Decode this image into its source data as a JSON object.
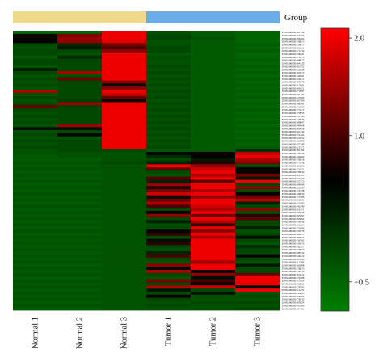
{
  "chart_data": {
    "type": "heatmap",
    "group_label": "Group",
    "groups": [
      {
        "name": "Normal",
        "columns": [
          "Normal 1",
          "Normal 2",
          "Normal 3"
        ],
        "color": "#efd98a"
      },
      {
        "name": "Tumor",
        "columns": [
          "Tumor 1",
          "Tumor 2",
          "Tumor 3"
        ],
        "color": "#6aace6"
      }
    ],
    "x_labels": [
      "Normal 1",
      "Normal 2",
      "Normal 3",
      "Tumor 1",
      "Tumor 2",
      "Tumor 3"
    ],
    "colorbar": {
      "ticks": [
        2.0,
        1.0,
        -0.5
      ],
      "tick_labels": [
        "2.0",
        "1.0",
        "−0.5"
      ],
      "range": [
        -0.8,
        2.1
      ],
      "colors": {
        "low": "#008000",
        "mid": "#000000",
        "high": "#ff0000"
      },
      "mid_value": 0.55
    },
    "row_labels": [
      "ENSG00000161739",
      "ENSG00000174595",
      "ENSG00000186304",
      "ENSG00000138613",
      "ENSG00000159077",
      "ENSG00000161011",
      "ENSG00000171234",
      "ENSG00000138401",
      "ENSG00000172915",
      "ENSG00000198877",
      "ENSG00000184330",
      "ENSG00000163752",
      "ENSG00000130528",
      "ENSG00000164713",
      "ENSG00000144591",
      "ENSG00000126217",
      "ENSG00000108278",
      "ENSG00000117602",
      "ENSG00000164251",
      "ENSG00000177697",
      "ENSG00000131127",
      "ENSG00000123595",
      "ENSG00000165709",
      "ENSG00000196381",
      "ENSG00000154099",
      "ENSG00000173217",
      "ENSG00000170955",
      "ENSG00000137486",
      "ENSG00000145826",
      "ENSG00000189047",
      "ENSG00000144908",
      "ENSG00000160956",
      "ENSG00000167434",
      "ENSG00000151204",
      "ENSG00000120314",
      "ENSG00000163788",
      "ENSG00000155749",
      "ENSG00000112715",
      "ENSG00000181104",
      "ENSG00000135926",
      "ENSG00000140464",
      "ENSG00000139618",
      "ENSG00000175538",
      "ENSG00000183696",
      "ENSG00000171621",
      "ENSG00000136630",
      "ENSG00000119523",
      "ENSG00000154229",
      "ENSG00000137273",
      "ENSG00000108406",
      "ENSG00000122335",
      "ENSG00000174738",
      "ENSG00000146830",
      "ENSG00000175183",
      "ENSG00000166851",
      "ENSG00000133393",
      "ENSG00000142549",
      "ENSG00000116171",
      "ENSG00000105568",
      "ENSG00000163497",
      "ENSG00000185862",
      "ENSG00000158246",
      "ENSG00000101224",
      "ENSG00000176204",
      "ENSG00000130779",
      "ENSG00000164077",
      "ENSG00000186654",
      "ENSG00000134762",
      "ENSG00000139219",
      "ENSG00000142327",
      "ENSG00000120659",
      "ENSG00000198754",
      "ENSG00000146474",
      "ENSG00000183454",
      "ENSG00000117399",
      "ENSG00000162688",
      "ENSG00000158023",
      "ENSG00000125347",
      "ENSG00000163412",
      "ENSG00000179388",
      "ENSG00000115419",
      "ENSG00000136881",
      "ENSG00000178295",
      "ENSG00000114270",
      "ENSG00000138685",
      "ENSG00000167553",
      "ENSG00000178233",
      "ENSG00000185024",
      "ENSG00000143569",
      "ENSG00000134461"
    ],
    "values": [
      [
        -0.6,
        -0.5,
        2.0,
        -0.3,
        -0.4,
        -0.5
      ],
      [
        0.7,
        1.3,
        2.0,
        -0.2,
        -0.4,
        -0.5
      ],
      [
        0.5,
        1.5,
        2.0,
        -0.2,
        -0.3,
        -0.5
      ],
      [
        0.5,
        1.4,
        1.9,
        -0.3,
        -0.4,
        -0.5
      ],
      [
        -0.2,
        0.1,
        1.3,
        -0.3,
        -0.4,
        -0.4
      ],
      [
        -0.3,
        0.3,
        1.0,
        -0.2,
        -0.4,
        -0.5
      ],
      [
        -0.2,
        -0.2,
        1.4,
        -0.2,
        -0.4,
        -0.4
      ],
      [
        -0.2,
        -0.3,
        2.0,
        -0.4,
        -0.4,
        -0.5
      ],
      [
        -0.4,
        0.1,
        2.0,
        -0.2,
        -0.4,
        -0.5
      ],
      [
        -0.2,
        -0.2,
        2.0,
        -0.3,
        -0.4,
        -0.4
      ],
      [
        -0.2,
        -0.2,
        2.0,
        -0.3,
        -0.4,
        -0.5
      ],
      [
        -0.3,
        -0.2,
        2.0,
        -0.2,
        -0.4,
        -0.4
      ],
      [
        0.3,
        -0.2,
        2.0,
        -0.3,
        -0.4,
        -0.5
      ],
      [
        -0.2,
        1.6,
        2.0,
        -0.2,
        -0.4,
        -0.4
      ],
      [
        -0.3,
        -0.3,
        2.0,
        -0.3,
        -0.4,
        -0.5
      ],
      [
        -0.2,
        1.2,
        2.0,
        -0.2,
        -0.4,
        -0.4
      ],
      [
        -0.3,
        -0.2,
        1.4,
        -0.3,
        -0.4,
        -0.5
      ],
      [
        -0.2,
        -0.2,
        0.4,
        -0.2,
        -0.4,
        -0.4
      ],
      [
        -0.3,
        -0.2,
        1.4,
        -0.3,
        -0.4,
        -0.5
      ],
      [
        1.6,
        -0.2,
        2.0,
        -0.2,
        -0.4,
        -0.4
      ],
      [
        -0.3,
        -0.2,
        1.8,
        -0.3,
        -0.4,
        -0.5
      ],
      [
        -0.2,
        -0.2,
        1.2,
        -0.2,
        -0.4,
        -0.4
      ],
      [
        -0.3,
        -0.1,
        0.6,
        -0.3,
        -0.4,
        -0.5
      ],
      [
        -0.2,
        1.5,
        2.0,
        -0.2,
        -0.4,
        -0.4
      ],
      [
        1.2,
        -0.1,
        2.0,
        -0.3,
        -0.4,
        -0.5
      ],
      [
        -0.2,
        -0.2,
        2.0,
        -0.2,
        -0.4,
        -0.4
      ],
      [
        -0.3,
        -0.2,
        2.0,
        -0.3,
        -0.4,
        -0.5
      ],
      [
        -0.2,
        -0.2,
        2.0,
        -0.2,
        -0.4,
        -0.4
      ],
      [
        -0.3,
        -0.2,
        2.0,
        -0.3,
        -0.4,
        -0.5
      ],
      [
        -0.2,
        -0.2,
        2.0,
        -0.2,
        -0.4,
        -0.4
      ],
      [
        -0.3,
        1.5,
        2.0,
        -0.3,
        -0.4,
        -0.5
      ],
      [
        0.4,
        0.4,
        2.0,
        -0.2,
        -0.4,
        -0.4
      ],
      [
        -0.3,
        -0.2,
        2.0,
        -0.3,
        -0.4,
        -0.5
      ],
      [
        -0.2,
        0.5,
        2.0,
        -0.2,
        -0.4,
        -0.4
      ],
      [
        -0.3,
        -0.3,
        2.0,
        -0.3,
        -0.4,
        -0.5
      ],
      [
        -0.2,
        -0.2,
        2.0,
        -0.2,
        -0.4,
        -0.4
      ],
      [
        -0.3,
        -0.2,
        2.0,
        -0.3,
        -0.4,
        -0.5
      ],
      [
        -0.2,
        -0.2,
        2.0,
        -0.2,
        -0.4,
        -0.4
      ],
      [
        -0.3,
        -0.2,
        -0.2,
        -0.4,
        -0.4,
        0.1
      ],
      [
        -0.3,
        -0.3,
        -0.3,
        0.5,
        0.6,
        1.7
      ],
      [
        -0.4,
        -0.3,
        -0.3,
        0.1,
        0.6,
        2.0
      ],
      [
        -0.4,
        -0.4,
        -0.3,
        -0.2,
        0.3,
        1.6
      ],
      [
        -0.3,
        -0.3,
        -0.2,
        0.2,
        0.8,
        1.3
      ],
      [
        -0.4,
        -0.4,
        -0.3,
        2.0,
        1.4,
        -0.2
      ],
      [
        -0.3,
        -0.3,
        -0.3,
        1.2,
        1.8,
        0.5
      ],
      [
        -0.4,
        -0.4,
        -0.3,
        -0.2,
        2.0,
        0.6
      ],
      [
        -0.3,
        -0.3,
        -0.3,
        -0.3,
        1.6,
        1.2
      ],
      [
        -0.4,
        -0.4,
        -0.3,
        1.1,
        2.0,
        0.3
      ],
      [
        -0.3,
        -0.3,
        -0.3,
        0.2,
        1.1,
        2.0
      ],
      [
        -0.4,
        -0.4,
        -0.3,
        1.5,
        2.0,
        -0.2
      ],
      [
        -0.3,
        -0.3,
        -0.3,
        0.8,
        2.0,
        1.4
      ],
      [
        -0.4,
        -0.4,
        -0.3,
        1.3,
        1.6,
        -0.2
      ],
      [
        -0.3,
        -0.3,
        -0.3,
        1.8,
        2.0,
        0.6
      ],
      [
        -0.4,
        -0.4,
        -0.3,
        0.4,
        1.4,
        1.2
      ],
      [
        -0.3,
        -0.3,
        -0.3,
        1.2,
        2.0,
        1.7
      ],
      [
        -0.4,
        -0.4,
        -0.3,
        1.6,
        2.0,
        0.2
      ],
      [
        -0.3,
        -0.3,
        -0.3,
        1.0,
        1.8,
        -0.2
      ],
      [
        -0.4,
        -0.4,
        -0.3,
        -0.2,
        1.6,
        1.4
      ],
      [
        -0.3,
        -0.3,
        -0.3,
        0.6,
        2.0,
        -0.3
      ],
      [
        -0.4,
        -0.4,
        -0.3,
        1.4,
        1.2,
        0.8
      ],
      [
        -0.3,
        -0.3,
        -0.3,
        -0.2,
        2.0,
        1.1
      ],
      [
        -0.4,
        -0.4,
        -0.3,
        0.2,
        1.6,
        -0.2
      ],
      [
        -0.3,
        -0.3,
        -0.3,
        -0.3,
        0.9,
        -0.2
      ],
      [
        -0.4,
        -0.4,
        -0.3,
        -0.2,
        2.0,
        0.2
      ],
      [
        -0.3,
        -0.3,
        -0.3,
        0.5,
        1.4,
        -0.3
      ],
      [
        -0.4,
        -0.4,
        -0.3,
        0.9,
        2.0,
        -0.2
      ],
      [
        -0.3,
        -0.3,
        -0.3,
        -0.2,
        1.6,
        0.4
      ],
      [
        -0.4,
        -0.4,
        -0.3,
        0.4,
        2.0,
        -0.2
      ],
      [
        -0.3,
        -0.3,
        -0.3,
        0.8,
        2.0,
        -0.3
      ],
      [
        -0.4,
        -0.4,
        -0.3,
        -0.2,
        2.0,
        0.1
      ],
      [
        -0.3,
        -0.3,
        -0.3,
        -0.3,
        2.0,
        -0.2
      ],
      [
        -0.4,
        -0.4,
        -0.3,
        0.2,
        2.0,
        -0.2
      ],
      [
        -0.3,
        -0.3,
        -0.3,
        1.0,
        2.0,
        0.6
      ],
      [
        -0.4,
        -0.4,
        -0.3,
        -0.2,
        2.0,
        -0.2
      ],
      [
        -0.3,
        -0.3,
        -0.3,
        -0.3,
        1.5,
        -0.3
      ],
      [
        -0.4,
        -0.4,
        -0.3,
        1.4,
        2.0,
        0.3
      ],
      [
        -0.3,
        -0.3,
        -0.3,
        0.5,
        2.0,
        -0.2
      ],
      [
        -0.4,
        -0.4,
        -0.3,
        1.6,
        0.6,
        -0.2
      ],
      [
        -0.3,
        -0.3,
        -0.3,
        -0.2,
        1.4,
        1.2
      ],
      [
        -0.4,
        -0.4,
        -0.3,
        -0.3,
        0.4,
        2.0
      ],
      [
        -0.3,
        -0.3,
        -0.3,
        1.3,
        1.0,
        2.0
      ],
      [
        -0.4,
        -0.4,
        -0.3,
        -0.2,
        0.6,
        2.0
      ],
      [
        -0.3,
        -0.3,
        -0.3,
        1.6,
        1.8,
        0.4
      ],
      [
        -0.4,
        -0.4,
        -0.3,
        0.3,
        -0.2,
        2.0
      ],
      [
        -0.3,
        -0.3,
        -0.3,
        -0.2,
        0.4,
        -0.3
      ],
      [
        -0.4,
        -0.4,
        -0.3,
        0.6,
        -0.3,
        -0.2
      ],
      [
        -0.3,
        -0.3,
        -0.3,
        -0.2,
        -0.3,
        -0.3
      ],
      [
        -0.4,
        -0.4,
        -0.3,
        -0.3,
        -0.2,
        -0.2
      ],
      [
        -0.3,
        -0.3,
        -0.3,
        -0.2,
        -0.3,
        -0.3
      ],
      [
        -0.4,
        -0.4,
        -0.3,
        -0.3,
        -0.3,
        -0.2
      ]
    ]
  }
}
